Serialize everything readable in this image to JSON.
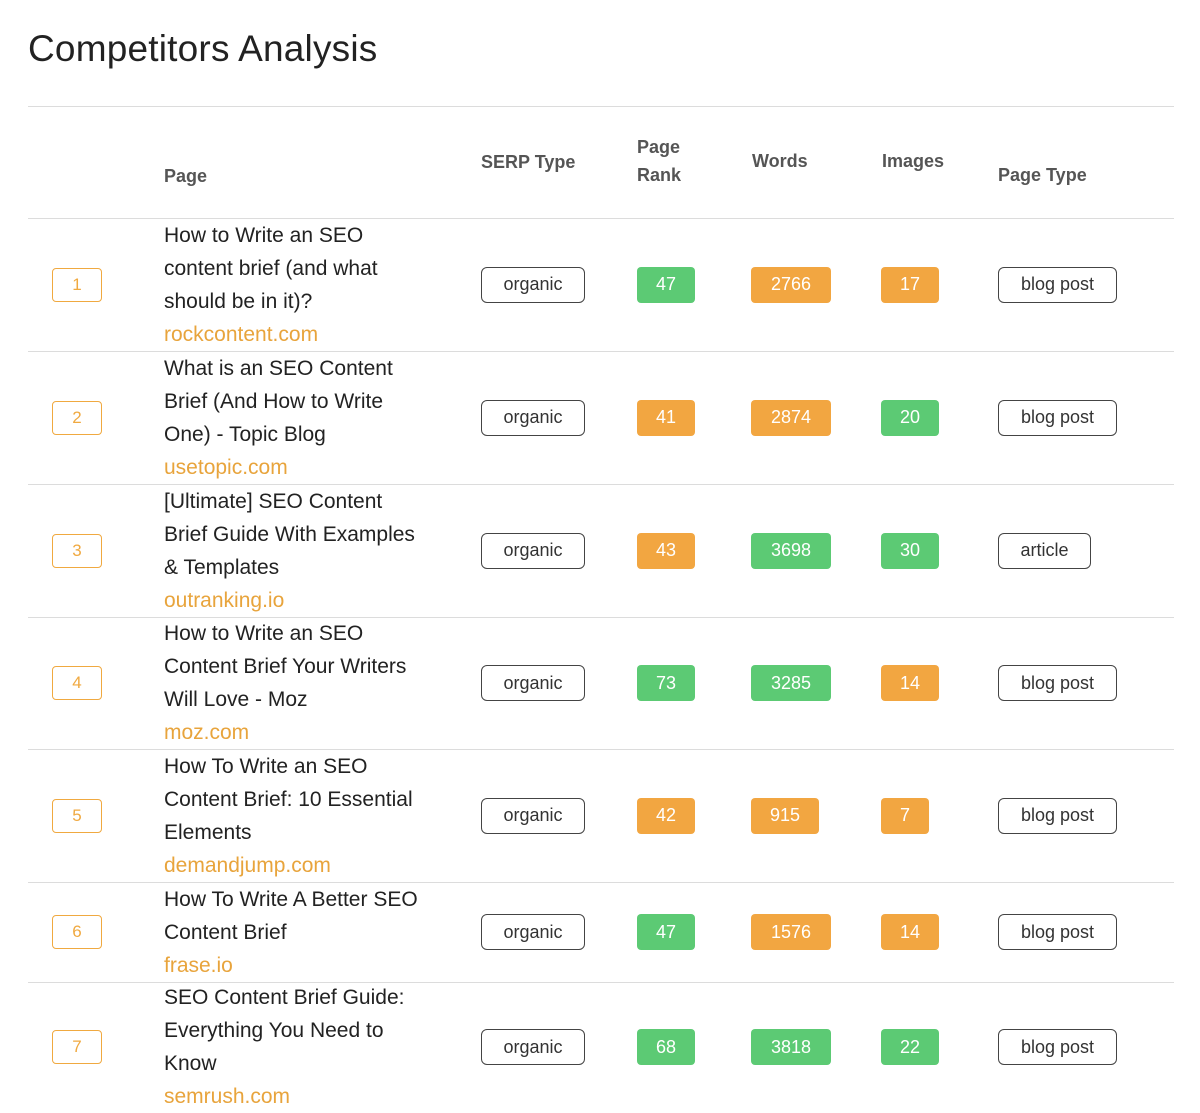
{
  "title": "Competitors Analysis",
  "headers": {
    "page": "Page",
    "serp_type": "SERP Type",
    "page_rank_1": "Page",
    "page_rank_2": "Rank",
    "words": "Words",
    "images": "Images",
    "page_type": "Page Type"
  },
  "colors": {
    "green": "#5cca74",
    "orange": "#f2a641",
    "accent": "#e8a43c"
  },
  "rows": [
    {
      "num": "1",
      "lines": [
        "How to Write an SEO",
        "content brief (and what",
        "should be in it)?"
      ],
      "domain": "rockcontent.com",
      "serp": "organic",
      "rank": "47",
      "rank_color": "green",
      "words": "2766",
      "words_color": "orange",
      "images": "17",
      "images_color": "orange",
      "type": "blog post"
    },
    {
      "num": "2",
      "lines": [
        "What is an SEO Content",
        "Brief (And How to Write",
        "One) - Topic Blog"
      ],
      "domain": "usetopic.com",
      "serp": "organic",
      "rank": "41",
      "rank_color": "orange",
      "words": "2874",
      "words_color": "orange",
      "images": "20",
      "images_color": "green",
      "type": "blog post"
    },
    {
      "num": "3",
      "lines": [
        "[Ultimate] SEO Content",
        "Brief Guide With Examples",
        "& Templates"
      ],
      "domain": "outranking.io",
      "serp": "organic",
      "rank": "43",
      "rank_color": "orange",
      "words": "3698",
      "words_color": "green",
      "images": "30",
      "images_color": "green",
      "type": "article"
    },
    {
      "num": "4",
      "lines": [
        "How to Write an SEO",
        "Content Brief Your Writers",
        "Will Love - Moz"
      ],
      "domain": "moz.com",
      "serp": "organic",
      "rank": "73",
      "rank_color": "green",
      "words": "3285",
      "words_color": "green",
      "images": "14",
      "images_color": "orange",
      "type": "blog post"
    },
    {
      "num": "5",
      "lines": [
        "How To Write an SEO",
        "Content Brief: 10 Essential",
        "Elements"
      ],
      "domain": "demandjump.com",
      "serp": "organic",
      "rank": "42",
      "rank_color": "orange",
      "words": "915",
      "words_color": "orange",
      "images": "7",
      "images_color": "orange",
      "type": "blog post"
    },
    {
      "num": "6",
      "lines": [
        "How To Write A Better SEO",
        "Content Brief"
      ],
      "domain": "frase.io",
      "serp": "organic",
      "rank": "47",
      "rank_color": "green",
      "words": "1576",
      "words_color": "orange",
      "images": "14",
      "images_color": "orange",
      "type": "blog post"
    },
    {
      "num": "7",
      "lines": [
        "SEO Content Brief Guide:",
        "Everything You Need to",
        "Know"
      ],
      "domain": "semrush.com",
      "serp": "organic",
      "rank": "68",
      "rank_color": "green",
      "words": "3818",
      "words_color": "green",
      "images": "22",
      "images_color": "green",
      "type": "blog post"
    }
  ]
}
